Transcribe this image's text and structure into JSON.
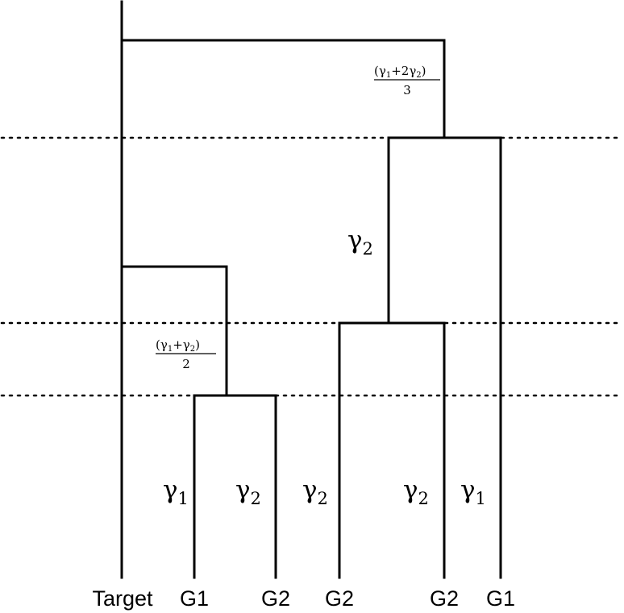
{
  "leaves": [
    "Target",
    "G1",
    "G2",
    "G2",
    "G2",
    "G1"
  ],
  "branch_labels": {
    "g1_left": {
      "sym": "γ",
      "sub": "1"
    },
    "g2_left": {
      "sym": "γ",
      "sub": "2"
    },
    "g2_mid": {
      "sym": "γ",
      "sub": "2"
    },
    "g2_right": {
      "sym": "γ",
      "sub": "2"
    },
    "g1_right": {
      "sym": "γ",
      "sub": "1"
    },
    "g2_upper": {
      "sym": "γ",
      "sub": "2"
    }
  },
  "fractions": {
    "avg_two": {
      "open": "(γ",
      "s1": "1",
      "plus": "+γ",
      "s2": "2",
      "close": ")",
      "denominator": "2"
    },
    "avg_three": {
      "open": "(γ",
      "s1": "1",
      "plus": "+2γ",
      "s2": "2",
      "close": ")",
      "denominator": "3"
    }
  }
}
